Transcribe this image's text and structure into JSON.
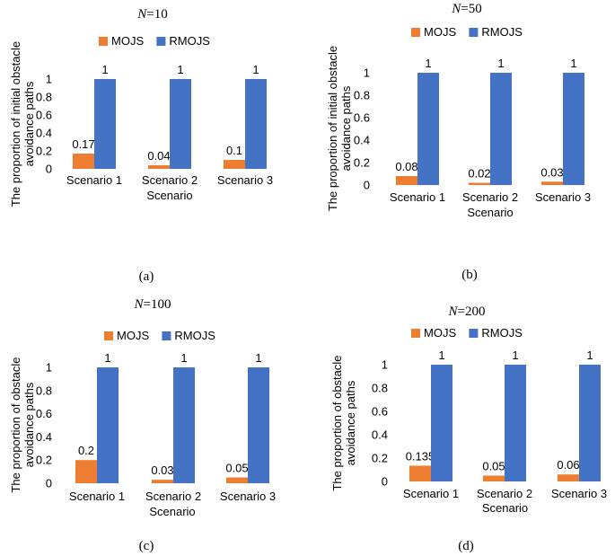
{
  "colors": {
    "mojs": "#ED7D31",
    "rmojs": "#4472C4",
    "text": "#000000"
  },
  "chart_data": [
    {
      "type": "bar",
      "title_prefix": "N",
      "title_suffix": "=10",
      "caption": "(a)",
      "categories": [
        "Scenario 1",
        "Scenario 2",
        "Scenario 3"
      ],
      "series": [
        {
          "name": "MOJS",
          "values": [
            0.17,
            0.04,
            0.1
          ],
          "labels": [
            "0.17",
            "0.04",
            "0.1"
          ]
        },
        {
          "name": "RMOJS",
          "values": [
            1,
            1,
            1
          ],
          "labels": [
            "1",
            "1",
            "1"
          ]
        }
      ],
      "ylabel_lines": [
        "The proportion of initial obstacle",
        "avoidance paths"
      ],
      "xlabel": "Scenario",
      "yticks": [
        "0",
        "0.2",
        "0.4",
        "0.6",
        "0.8",
        "1"
      ],
      "ylim": [
        0,
        1
      ]
    },
    {
      "type": "bar",
      "title_prefix": "N",
      "title_suffix": "=50",
      "caption": "(b)",
      "categories": [
        "Scenario 1",
        "Scenario 2",
        "Scenario 3"
      ],
      "series": [
        {
          "name": "MOJS",
          "values": [
            0.08,
            0.02,
            0.03
          ],
          "labels": [
            "0.08",
            "0.02",
            "0.03"
          ]
        },
        {
          "name": "RMOJS",
          "values": [
            1,
            1,
            1
          ],
          "labels": [
            "1",
            "1",
            "1"
          ]
        }
      ],
      "ylabel_lines": [
        "The proportion of initial obstacle",
        "avoidance paths"
      ],
      "xlabel": "Scenario",
      "yticks": [
        "0",
        "0.2",
        "0.4",
        "0.6",
        "0.8",
        "1"
      ],
      "ylim": [
        0,
        1
      ]
    },
    {
      "type": "bar",
      "title_prefix": "N",
      "title_suffix": "=100",
      "caption": "(c)",
      "categories": [
        "Scenario 1",
        "Scenario 2",
        "Scenario 3"
      ],
      "series": [
        {
          "name": "MOJS",
          "values": [
            0.2,
            0.03,
            0.05
          ],
          "labels": [
            "0.2",
            "0.03",
            "0.05"
          ]
        },
        {
          "name": "RMOJS",
          "values": [
            1,
            1,
            1
          ],
          "labels": [
            "1",
            "1",
            "1"
          ]
        }
      ],
      "ylabel_lines": [
        "The proportion of obstacle",
        "avoidance paths"
      ],
      "xlabel": "Scenario",
      "yticks": [
        "0",
        "0.2",
        "0.4",
        "0.6",
        "0.8",
        "1"
      ],
      "ylim": [
        0,
        1
      ]
    },
    {
      "type": "bar",
      "title_prefix": "N",
      "title_suffix": "=200",
      "caption": "(d)",
      "categories": [
        "Scenario 1",
        "Scenario 2",
        "Scenario 3"
      ],
      "series": [
        {
          "name": "MOJS",
          "values": [
            0.135,
            0.05,
            0.06
          ],
          "labels": [
            "0.135",
            "0.05",
            "0.06"
          ]
        },
        {
          "name": "RMOJS",
          "values": [
            1,
            1,
            1
          ],
          "labels": [
            "1",
            "1",
            "1"
          ]
        }
      ],
      "ylabel_lines": [
        "The proportion of obstacle",
        "avoidance paths"
      ],
      "xlabel": "Scenario",
      "yticks": [
        "0",
        "0.2",
        "0.4",
        "0.6",
        "0.8",
        "1"
      ],
      "ylim": [
        0,
        1
      ]
    }
  ]
}
